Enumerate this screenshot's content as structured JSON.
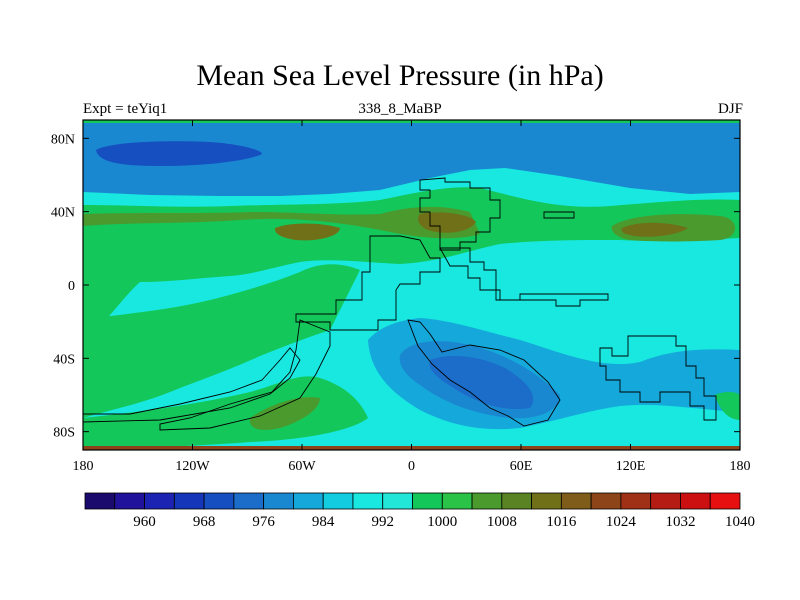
{
  "figure": {
    "title": "Mean Sea Level Pressure (in hPa)",
    "left_string": "Expt = teYiq1",
    "center_string": "338_8_MaBP",
    "right_string": "DJF"
  },
  "map": {
    "type": "filled-contour-map",
    "projection": "cylindrical-equidistant",
    "lon_range": [
      -180,
      180
    ],
    "lat_range": [
      -90,
      90
    ],
    "lon_ticks": [
      {
        "value": -180,
        "label": "180"
      },
      {
        "value": -120,
        "label": "120W"
      },
      {
        "value": -60,
        "label": "60W"
      },
      {
        "value": 0,
        "label": "0"
      },
      {
        "value": 60,
        "label": "60E"
      },
      {
        "value": 120,
        "label": "120E"
      },
      {
        "value": 180,
        "label": "180"
      }
    ],
    "lat_ticks": [
      {
        "value": 80,
        "label": "80N"
      },
      {
        "value": 40,
        "label": "40N"
      },
      {
        "value": 0,
        "label": "0"
      },
      {
        "value": -40,
        "label": "40S"
      },
      {
        "value": -80,
        "label": "80S"
      }
    ]
  },
  "colorbar": {
    "levels": [
      956,
      960,
      964,
      968,
      972,
      976,
      980,
      984,
      988,
      992,
      996,
      1000,
      1004,
      1008,
      1012,
      1016,
      1020,
      1024,
      1028,
      1032,
      1036,
      1040
    ],
    "colors": [
      "#1a0a6e",
      "#20129a",
      "#1c22b2",
      "#1536b8",
      "#1650c0",
      "#1b6dc9",
      "#1a88d0",
      "#15a8da",
      "#13ccdf",
      "#18e8e0",
      "#21e6d8",
      "#14c75a",
      "#2bc248",
      "#4a9a2e",
      "#5a8424",
      "#707018",
      "#7f5c1a",
      "#8c4418",
      "#a03016",
      "#b51d14",
      "#cc0f10",
      "#e61010"
    ],
    "labeled_levels": [
      "960",
      "968",
      "976",
      "984",
      "992",
      "1000",
      "1008",
      "1016",
      "1024",
      "1032",
      "1040"
    ]
  }
}
